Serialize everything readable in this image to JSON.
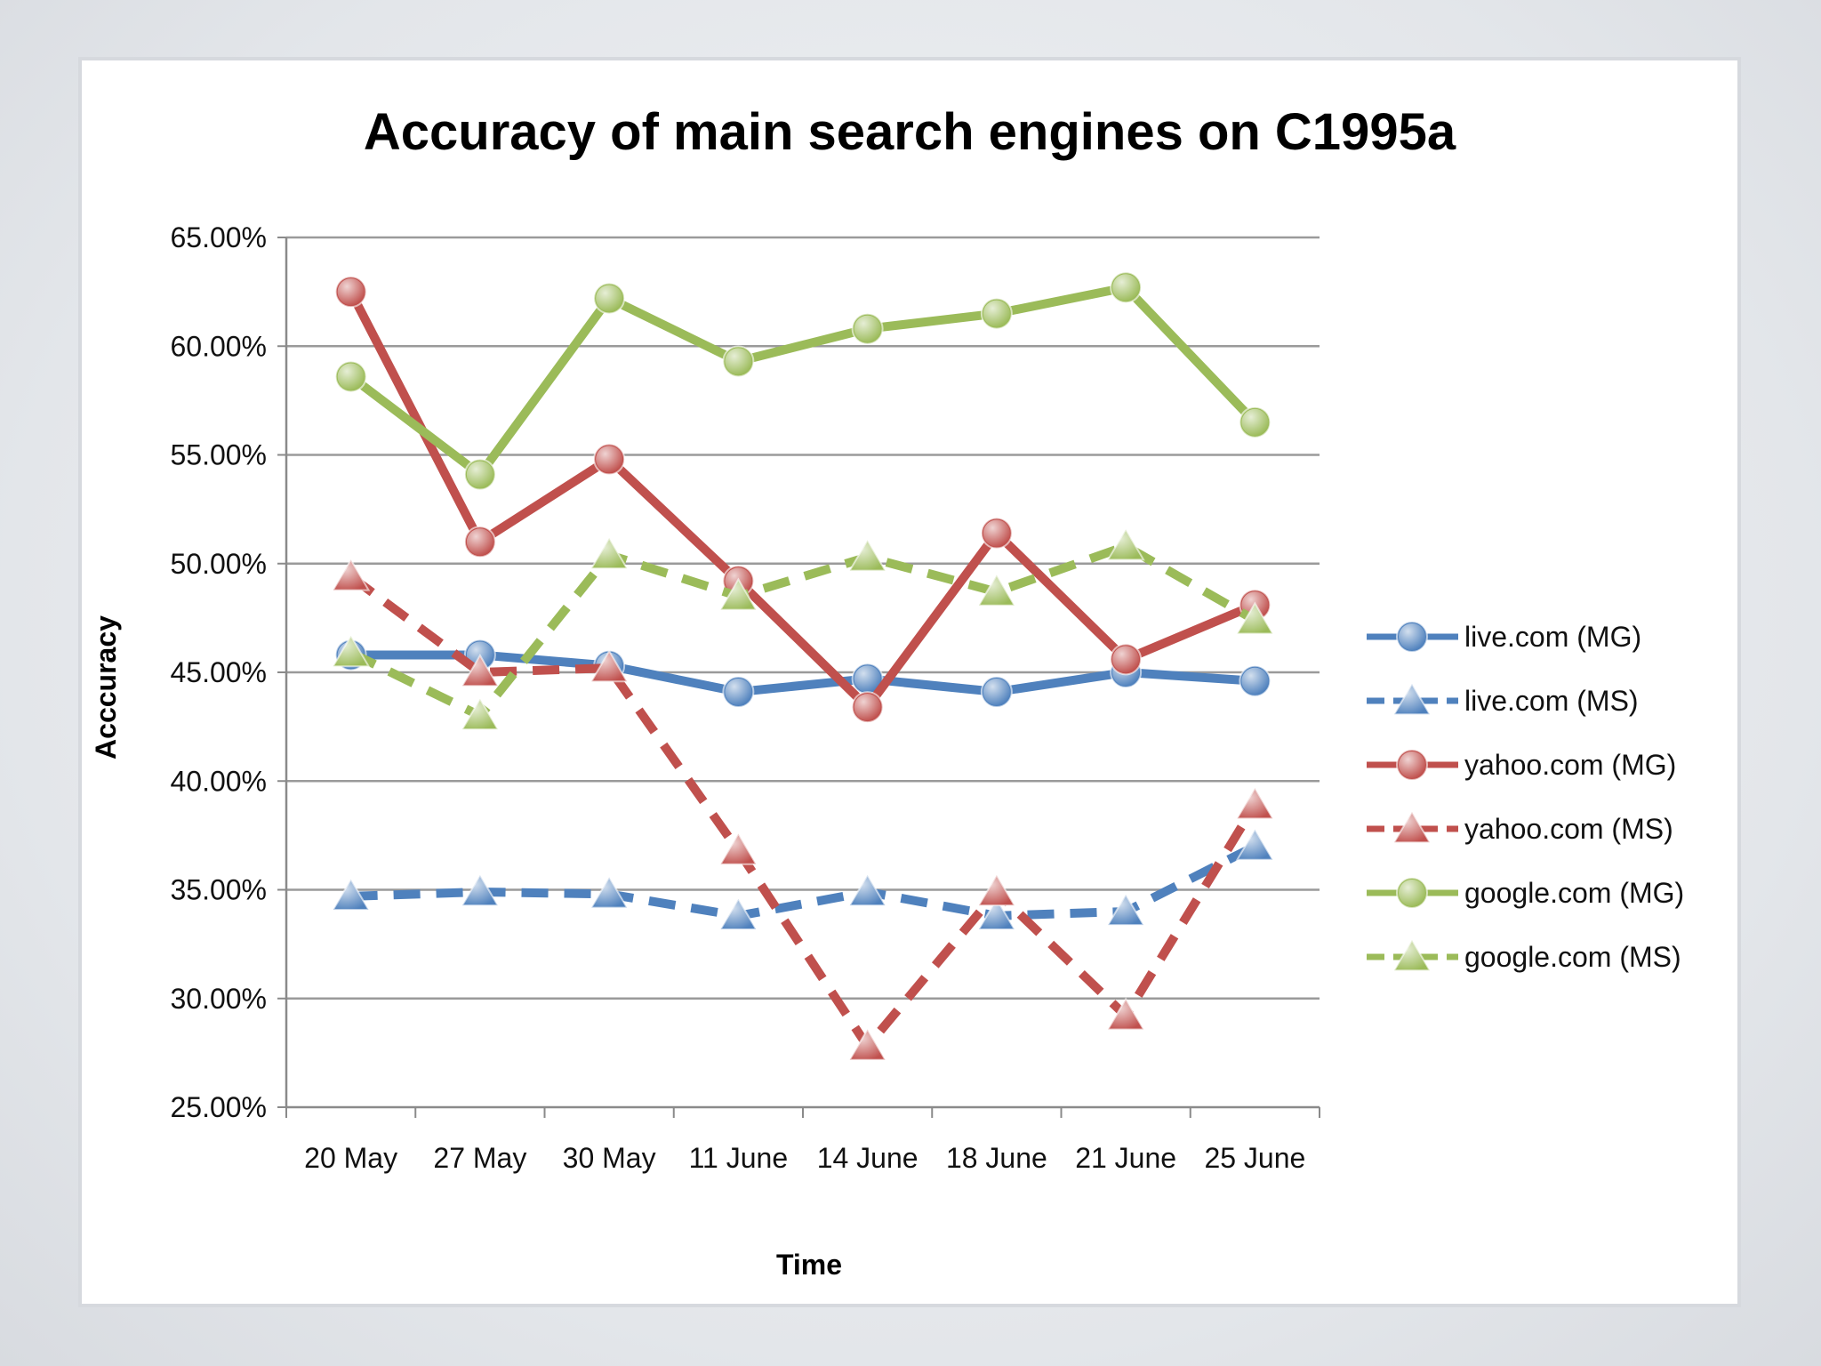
{
  "chart_data": {
    "type": "line",
    "title": "Accuracy of main search engines on C1995a",
    "xlabel": "Time",
    "ylabel": "Acccuracy",
    "categories": [
      "20 May",
      "27 May",
      "30 May",
      "11 June",
      "14 June",
      "18 June",
      "21 June",
      "25 June"
    ],
    "ylim": [
      25,
      65
    ],
    "ytick_step": 5,
    "ytick_labels": [
      "25.00%",
      "30.00%",
      "35.00%",
      "40.00%",
      "45.00%",
      "50.00%",
      "55.00%",
      "60.00%",
      "65.00%"
    ],
    "grid": "horizontal",
    "legend_position": "right",
    "series": [
      {
        "name": "live.com (MG)",
        "color": "#4f81bd",
        "style": "solid",
        "marker": "circle",
        "values": [
          45.8,
          45.8,
          45.3,
          44.1,
          44.7,
          44.1,
          45.0,
          44.6
        ]
      },
      {
        "name": "live.com (MS)",
        "color": "#4f81bd",
        "style": "dashed",
        "marker": "triangle",
        "values": [
          34.7,
          34.9,
          34.8,
          33.8,
          34.9,
          33.8,
          34.0,
          37.0
        ]
      },
      {
        "name": "yahoo.com (MG)",
        "color": "#c0504d",
        "style": "solid",
        "marker": "circle",
        "values": [
          62.5,
          51.0,
          54.8,
          49.2,
          43.4,
          51.4,
          45.6,
          48.1
        ]
      },
      {
        "name": "yahoo.com (MS)",
        "color": "#c0504d",
        "style": "dashed",
        "marker": "triangle",
        "values": [
          49.4,
          45.0,
          45.2,
          36.8,
          27.8,
          34.9,
          29.2,
          38.9
        ]
      },
      {
        "name": "google.com (MG)",
        "color": "#9bbb59",
        "style": "solid",
        "marker": "circle",
        "values": [
          58.6,
          54.1,
          62.2,
          59.3,
          60.8,
          61.5,
          62.7,
          56.5
        ]
      },
      {
        "name": "google.com (MS)",
        "color": "#9bbb59",
        "style": "dashed",
        "marker": "triangle",
        "values": [
          45.9,
          43.0,
          50.4,
          48.5,
          50.3,
          48.7,
          50.8,
          47.4
        ]
      }
    ]
  }
}
